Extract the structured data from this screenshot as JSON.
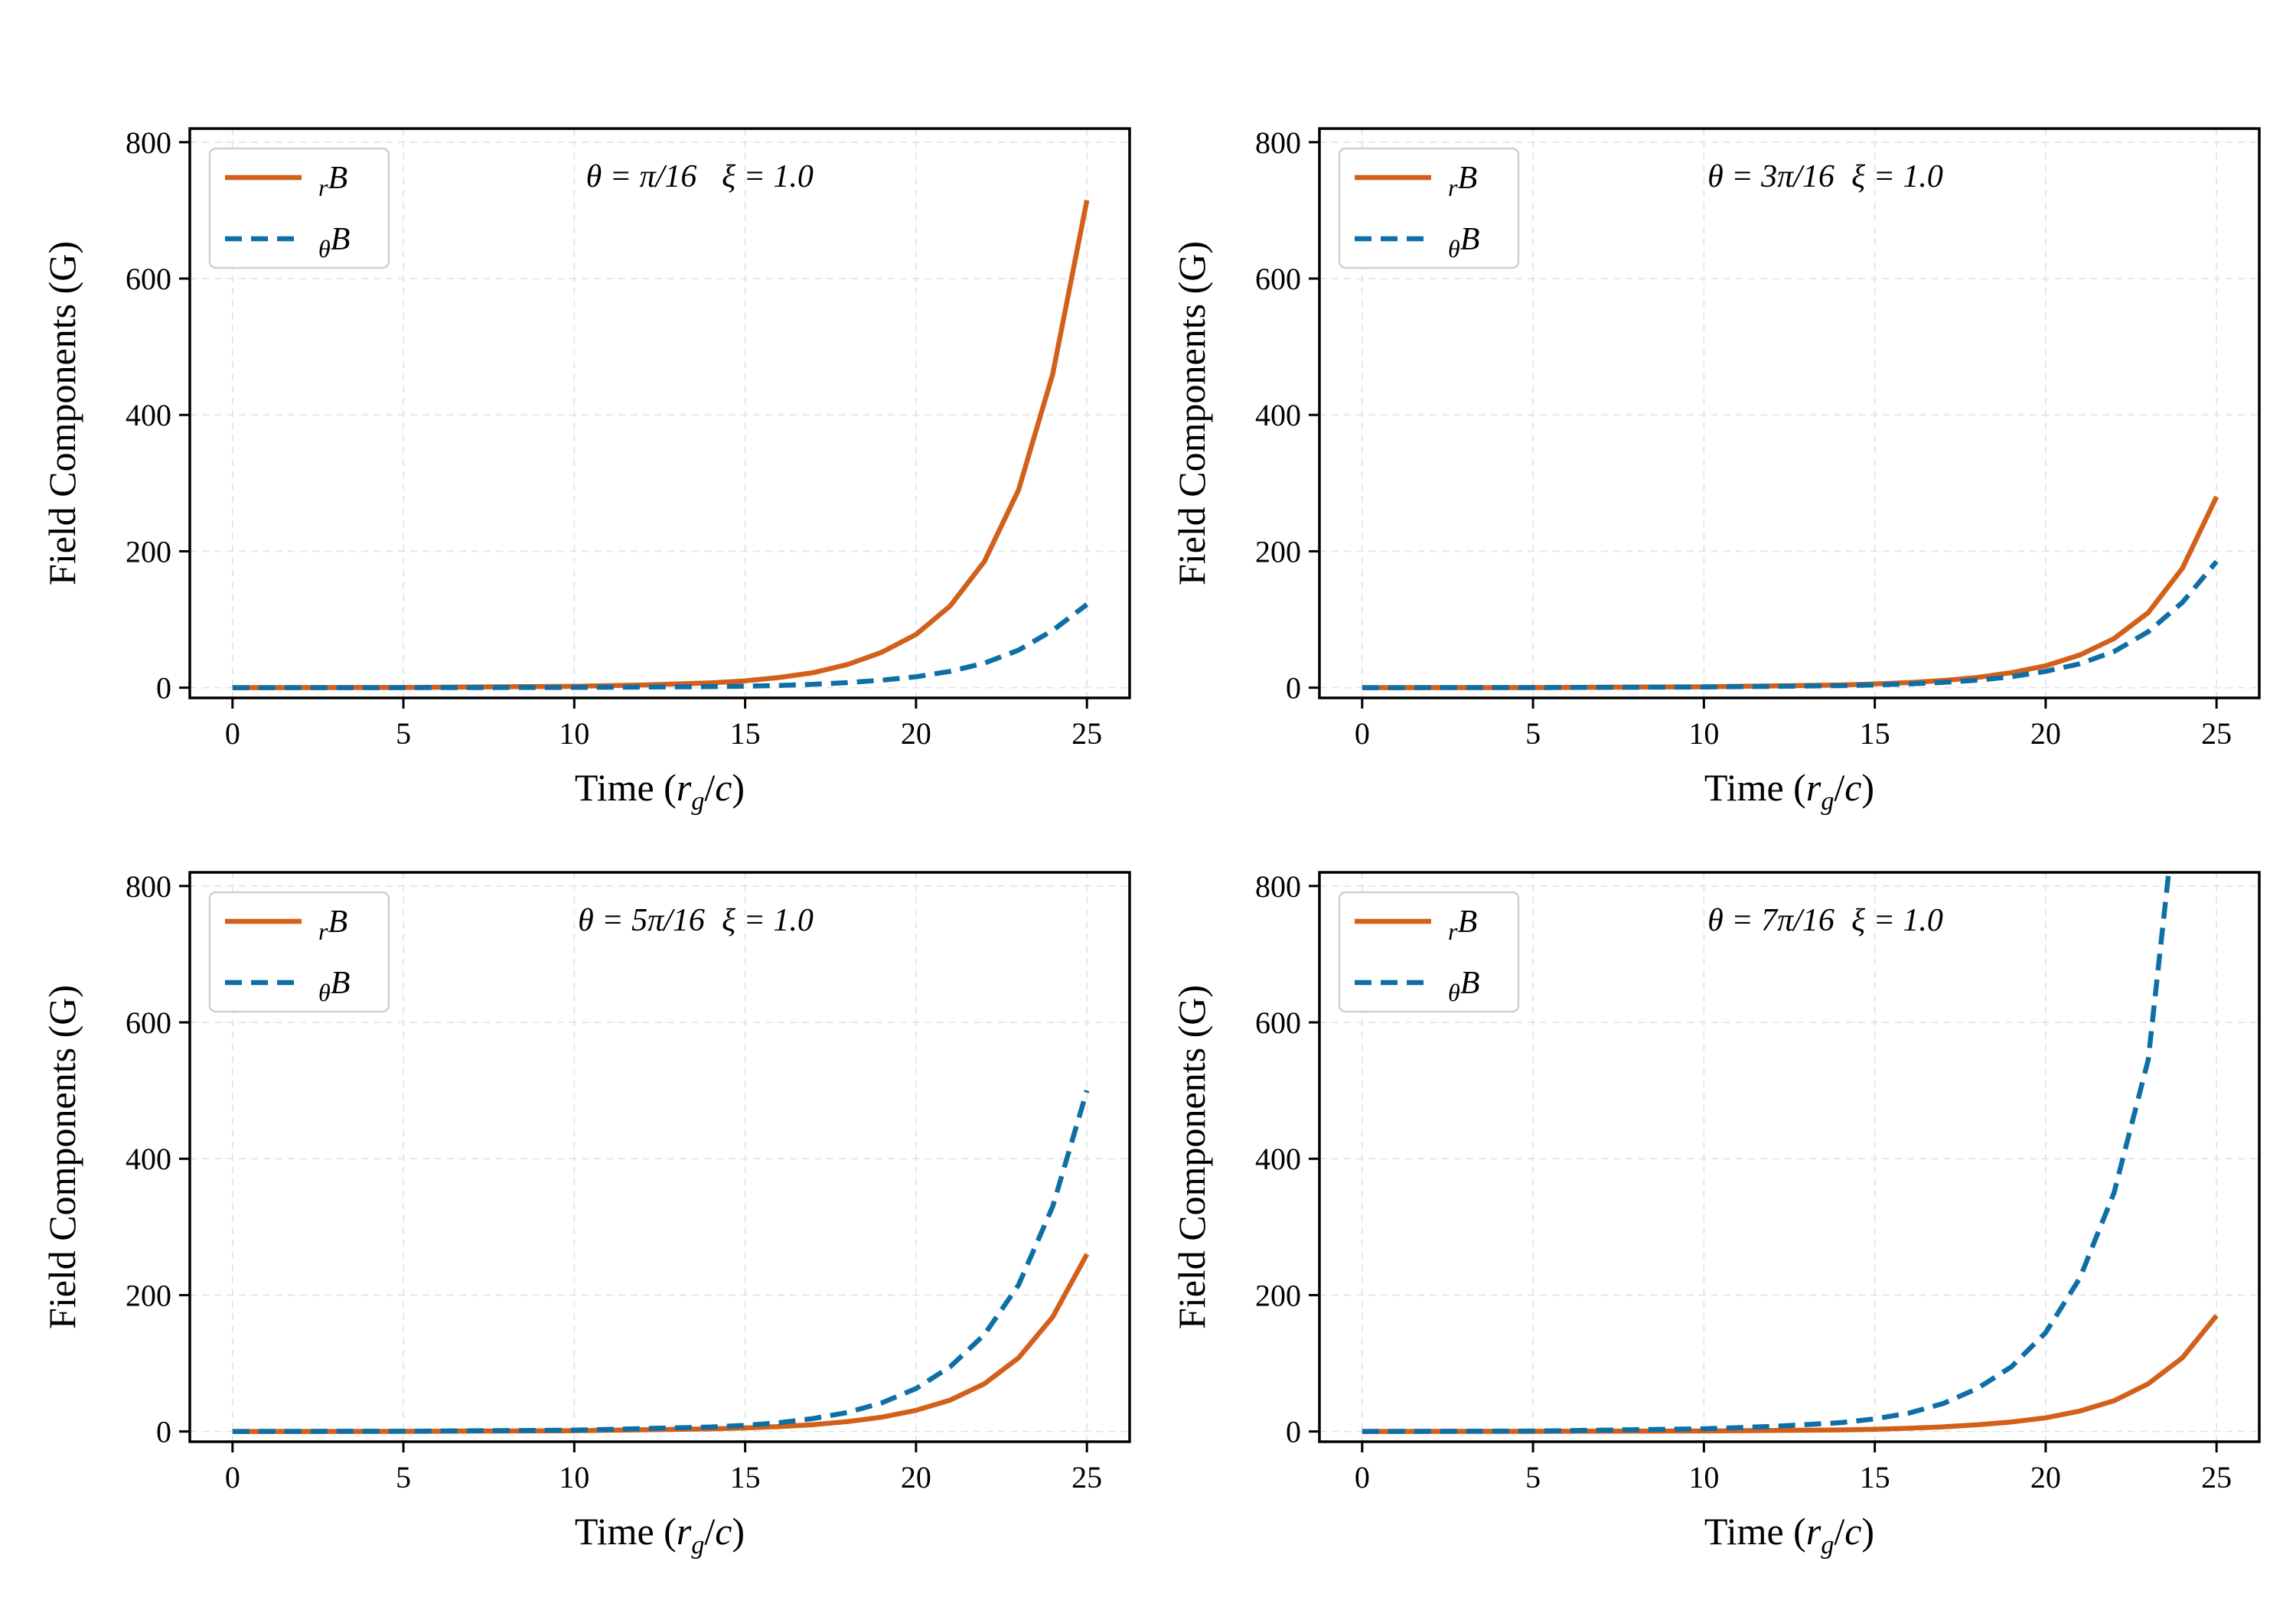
{
  "chart_data": [
    {
      "type": "line",
      "title": "",
      "xlabel": "Time (r_g/c)",
      "ylabel": "Field Components (G)",
      "xlim": [
        -1.25,
        26.25
      ],
      "ylim": [
        -15,
        820
      ],
      "xticks": [
        0,
        5,
        10,
        15,
        20,
        25
      ],
      "yticks": [
        0,
        200,
        400,
        600,
        800
      ],
      "annotations": {
        "theta": "θ = π/16",
        "xi": "ξ = 1.0"
      },
      "legend": {
        "position": "top-left"
      },
      "series": [
        {
          "name": "rB",
          "color": "#d2601a",
          "style": "solid",
          "x": [
            0,
            5,
            10,
            12,
            14,
            15,
            16,
            17,
            18,
            19,
            20,
            21,
            22,
            23,
            24,
            25
          ],
          "y": [
            0,
            0.3,
            2,
            4,
            7,
            10,
            15,
            22,
            34,
            52,
            78,
            120,
            185,
            290,
            460,
            715
          ]
        },
        {
          "name": "θB",
          "color": "#0e6fa6",
          "style": "dashed",
          "x": [
            0,
            5,
            10,
            14,
            15,
            16,
            17,
            18,
            19,
            20,
            21,
            22,
            23,
            24,
            25
          ],
          "y": [
            0,
            0.05,
            0.4,
            1.5,
            2.2,
            3.3,
            5,
            7.5,
            11,
            16,
            24,
            36,
            55,
            84,
            122
          ]
        }
      ]
    },
    {
      "type": "line",
      "title": "",
      "xlabel": "Time (r_g/c)",
      "ylabel": "Field Components (G)",
      "xlim": [
        -1.25,
        26.25
      ],
      "ylim": [
        -15,
        820
      ],
      "xticks": [
        0,
        5,
        10,
        15,
        20,
        25
      ],
      "yticks": [
        0,
        200,
        400,
        600,
        800
      ],
      "annotations": {
        "theta": "θ = 3π/16",
        "xi": "ξ = 1.0"
      },
      "legend": {
        "position": "top-left"
      },
      "series": [
        {
          "name": "rB",
          "color": "#d2601a",
          "style": "solid",
          "x": [
            0,
            5,
            10,
            14,
            15,
            16,
            17,
            18,
            19,
            20,
            21,
            22,
            23,
            24,
            25
          ],
          "y": [
            0,
            0.2,
            1.3,
            4,
            5.5,
            7.5,
            10.5,
            15,
            22,
            32,
            48,
            72,
            110,
            175,
            280
          ]
        },
        {
          "name": "θB",
          "color": "#0e6fa6",
          "style": "dashed",
          "x": [
            0,
            5,
            10,
            14,
            15,
            16,
            17,
            18,
            19,
            20,
            21,
            22,
            23,
            24,
            25
          ],
          "y": [
            0,
            0.15,
            0.9,
            3,
            4,
            5.5,
            7.8,
            11,
            16,
            24,
            35,
            53,
            82,
            125,
            185
          ]
        }
      ]
    },
    {
      "type": "line",
      "title": "",
      "xlabel": "Time (r_g/c)",
      "ylabel": "Field Components (G)",
      "xlim": [
        -1.25,
        26.25
      ],
      "ylim": [
        -15,
        820
      ],
      "xticks": [
        0,
        5,
        10,
        15,
        20,
        25
      ],
      "yticks": [
        0,
        200,
        400,
        600,
        800
      ],
      "annotations": {
        "theta": "θ = 5π/16",
        "xi": "ξ = 1.0"
      },
      "legend": {
        "position": "top-left"
      },
      "series": [
        {
          "name": "rB",
          "color": "#d2601a",
          "style": "solid",
          "x": [
            0,
            5,
            10,
            14,
            15,
            16,
            17,
            18,
            19,
            20,
            21,
            22,
            23,
            24,
            25
          ],
          "y": [
            0,
            0.2,
            1.2,
            3.8,
            5.2,
            7.2,
            10,
            14.5,
            21,
            31,
            46,
            70,
            108,
            168,
            260
          ]
        },
        {
          "name": "θB",
          "color": "#0e6fa6",
          "style": "dashed",
          "x": [
            0,
            5,
            10,
            14,
            15,
            16,
            17,
            18,
            19,
            20,
            21,
            22,
            23,
            24,
            25
          ],
          "y": [
            0,
            0.35,
            2,
            6.5,
            9,
            13,
            19,
            28,
            42,
            63,
            95,
            142,
            215,
            330,
            500
          ]
        }
      ]
    },
    {
      "type": "line",
      "title": "",
      "xlabel": "Time (r_g/c)",
      "ylabel": "Field Components (G)",
      "xlim": [
        -1.25,
        26.25
      ],
      "ylim": [
        -15,
        820
      ],
      "xticks": [
        0,
        5,
        10,
        15,
        20,
        25
      ],
      "yticks": [
        0,
        200,
        400,
        600,
        800
      ],
      "annotations": {
        "theta": "θ = 7π/16",
        "xi": "ξ = 1.0"
      },
      "legend": {
        "position": "top-left"
      },
      "series": [
        {
          "name": "rB",
          "color": "#d2601a",
          "style": "solid",
          "x": [
            0,
            5,
            10,
            14,
            15,
            16,
            17,
            18,
            19,
            20,
            21,
            22,
            23,
            24,
            25
          ],
          "y": [
            0,
            0.1,
            0.7,
            2.3,
            3.3,
            4.7,
            6.8,
            9.8,
            14,
            20,
            30,
            45,
            70,
            108,
            170
          ]
        },
        {
          "name": "θB",
          "color": "#0e6fa6",
          "style": "dashed",
          "x": [
            0,
            5,
            10,
            12,
            14,
            15,
            16,
            17,
            18,
            19,
            20,
            21,
            22,
            23,
            23.6
          ],
          "y": [
            0,
            0.6,
            4,
            7.5,
            13,
            18.5,
            27,
            41,
            63,
            95,
            145,
            225,
            350,
            545,
            820
          ]
        }
      ]
    }
  ]
}
